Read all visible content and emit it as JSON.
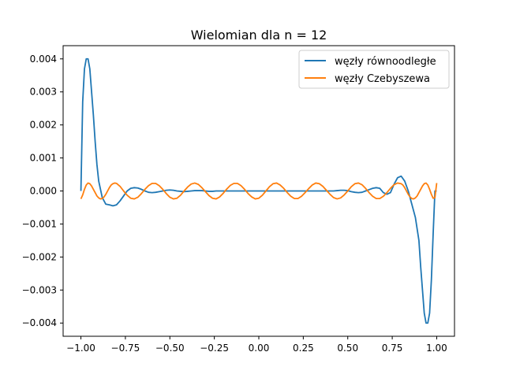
{
  "chart_data": {
    "type": "line",
    "title": "Wielomian dla n = 12",
    "xlabel": "",
    "ylabel": "",
    "xlim": [
      -1.1,
      1.1
    ],
    "ylim": [
      -0.0044,
      0.0044
    ],
    "xticks": [
      -1.0,
      -0.75,
      -0.5,
      -0.25,
      0.0,
      0.25,
      0.5,
      0.75,
      1.0
    ],
    "xtick_labels": [
      "−1.00",
      "−0.75",
      "−0.50",
      "−0.25",
      "0.00",
      "0.25",
      "0.50",
      "0.75",
      "1.00"
    ],
    "yticks": [
      -0.004,
      -0.003,
      -0.002,
      -0.001,
      0.0,
      0.001,
      0.002,
      0.003,
      0.004
    ],
    "ytick_labels": [
      "−0.004",
      "−0.003",
      "−0.002",
      "−0.001",
      "0.000",
      "0.001",
      "0.002",
      "0.003",
      "0.004"
    ],
    "grid": false,
    "legend_position": "top-right",
    "series": [
      {
        "name": "węzły równoodległe",
        "color": "#1f77b4",
        "x": [
          -1.0,
          -0.99,
          -0.98,
          -0.97,
          -0.96,
          -0.95,
          -0.94,
          -0.93,
          -0.92,
          -0.91,
          -0.9,
          -0.88,
          -0.86,
          -0.84,
          -0.82,
          -0.8,
          -0.78,
          -0.76,
          -0.74,
          -0.72,
          -0.7,
          -0.68,
          -0.66,
          -0.64,
          -0.62,
          -0.6,
          -0.58,
          -0.56,
          -0.54,
          -0.52,
          -0.5,
          -0.48,
          -0.46,
          -0.44,
          -0.42,
          -0.4,
          -0.38,
          -0.36,
          -0.34,
          -0.32,
          -0.3,
          -0.28,
          -0.26,
          -0.24,
          -0.22,
          -0.2,
          -0.18,
          -0.16,
          -0.14,
          -0.12,
          -0.1,
          -0.08,
          -0.06,
          -0.04,
          -0.02,
          0.0,
          0.02,
          0.04,
          0.06,
          0.08,
          0.1,
          0.12,
          0.14,
          0.16,
          0.18,
          0.2,
          0.22,
          0.24,
          0.26,
          0.28,
          0.3,
          0.32,
          0.34,
          0.36,
          0.38,
          0.4,
          0.42,
          0.44,
          0.46,
          0.48,
          0.5,
          0.52,
          0.54,
          0.56,
          0.58,
          0.6,
          0.62,
          0.64,
          0.66,
          0.68,
          0.7,
          0.72,
          0.74,
          0.76,
          0.78,
          0.8,
          0.82,
          0.84,
          0.86,
          0.88,
          0.9,
          0.91,
          0.92,
          0.93,
          0.94,
          0.95,
          0.96,
          0.97,
          0.98,
          0.99,
          1.0
        ],
        "y": [
          0.0,
          0.0027,
          0.0037,
          0.004,
          0.004,
          0.0037,
          0.003,
          0.0023,
          0.0015,
          0.0008,
          0.0003,
          -0.0002,
          -0.0004,
          -0.00042,
          -0.00045,
          -0.00042,
          -0.0003,
          -0.00015,
          0.0,
          8e-05,
          0.0001,
          9e-05,
          5e-05,
          0.0,
          -4e-05,
          -5e-05,
          -4e-05,
          -2e-05,
          0.0,
          2e-05,
          3e-05,
          2e-05,
          0.0,
          -1e-05,
          -2e-05,
          -1e-05,
          0.0,
          1e-05,
          1e-05,
          1e-05,
          0.0,
          -1e-05,
          -1e-05,
          0.0,
          0.0,
          0.0,
          0.0,
          0.0,
          0.0,
          0.0,
          0.0,
          0.0,
          0.0,
          0.0,
          0.0,
          0.0,
          0.0,
          0.0,
          0.0,
          0.0,
          0.0,
          0.0,
          0.0,
          0.0,
          0.0,
          0.0,
          0.0,
          0.0,
          0.0,
          0.0,
          0.0,
          0.0,
          0.0,
          0.0,
          0.0,
          0.0,
          0.0,
          1e-05,
          2e-05,
          2e-05,
          1e-05,
          -2e-05,
          -4e-05,
          -5e-05,
          -4e-05,
          0.0,
          4e-05,
          8e-05,
          0.0001,
          8e-05,
          -5e-05,
          -0.0001,
          -5e-05,
          0.0002,
          0.0004,
          0.00045,
          0.0003,
          0.0,
          -0.0004,
          -0.0008,
          -0.0015,
          -0.0023,
          -0.003,
          -0.0037,
          -0.004,
          -0.004,
          -0.0037,
          -0.0027,
          -0.0013,
          0.0,
          0.0
        ]
      },
      {
        "name": "węzły Czebyszewa",
        "color": "#ff7f0e",
        "x": [
          -1.0,
          -0.99,
          -0.98,
          -0.97,
          -0.96,
          -0.95,
          -0.94,
          -0.93,
          -0.92,
          -0.91,
          -0.9,
          -0.89,
          -0.88,
          -0.87,
          -0.86,
          -0.85,
          -0.84,
          -0.83,
          -0.82,
          -0.81,
          -0.8,
          -0.78,
          -0.76,
          -0.74,
          -0.72,
          -0.7,
          -0.68,
          -0.66,
          -0.64,
          -0.62,
          -0.6,
          -0.58,
          -0.56,
          -0.54,
          -0.52,
          -0.5,
          -0.48,
          -0.46,
          -0.44,
          -0.42,
          -0.4,
          -0.38,
          -0.36,
          -0.34,
          -0.32,
          -0.3,
          -0.28,
          -0.26,
          -0.24,
          -0.22,
          -0.2,
          -0.18,
          -0.16,
          -0.14,
          -0.12,
          -0.1,
          -0.08,
          -0.06,
          -0.04,
          -0.02,
          0.0,
          0.02,
          0.04,
          0.06,
          0.08,
          0.1,
          0.12,
          0.14,
          0.16,
          0.18,
          0.2,
          0.22,
          0.24,
          0.26,
          0.28,
          0.3,
          0.32,
          0.34,
          0.36,
          0.38,
          0.4,
          0.42,
          0.44,
          0.46,
          0.48,
          0.5,
          0.52,
          0.54,
          0.56,
          0.58,
          0.6,
          0.62,
          0.64,
          0.66,
          0.68,
          0.7,
          0.72,
          0.74,
          0.76,
          0.78,
          0.8,
          0.81,
          0.82,
          0.83,
          0.84,
          0.85,
          0.86,
          0.87,
          0.88,
          0.89,
          0.9,
          0.91,
          0.92,
          0.93,
          0.94,
          0.95,
          0.96,
          0.97,
          0.98,
          0.99,
          1.0
        ],
        "y": [
          -0.00024,
          -0.00012,
          5e-05,
          0.00018,
          0.00024,
          0.00022,
          0.00015,
          5e-05,
          -5e-05,
          -0.00015,
          -0.00021,
          -0.00024,
          -0.00023,
          -0.00018,
          -0.0001,
          0.0,
          0.0001,
          0.00018,
          0.00022,
          0.00024,
          0.00023,
          0.00014,
          0.0,
          -0.00013,
          -0.00022,
          -0.00024,
          -0.00019,
          -8e-05,
          5e-05,
          0.00016,
          0.00023,
          0.00023,
          0.00016,
          5e-05,
          -8e-05,
          -0.00019,
          -0.00024,
          -0.00022,
          -0.00013,
          0.0,
          0.00012,
          0.00021,
          0.00024,
          0.0002,
          0.0001,
          -2e-05,
          -0.00014,
          -0.00022,
          -0.00024,
          -0.00018,
          -7e-05,
          6e-05,
          0.00017,
          0.00023,
          0.00023,
          0.00016,
          5e-05,
          -8e-05,
          -0.00018,
          -0.00024,
          -0.00022,
          -0.00013,
          0.0,
          0.00013,
          0.00022,
          0.00024,
          0.00018,
          8e-05,
          -5e-05,
          -0.00016,
          -0.00023,
          -0.00023,
          -0.00016,
          -5e-05,
          7e-05,
          0.00018,
          0.00024,
          0.00022,
          0.00014,
          2e-05,
          -0.0001,
          -0.0002,
          -0.00024,
          -0.00021,
          -0.00012,
          0.0,
          0.00013,
          0.00022,
          0.00024,
          0.00019,
          8e-05,
          -5e-05,
          -0.00016,
          -0.00023,
          -0.00023,
          -0.00016,
          -5e-05,
          8e-05,
          0.00019,
          0.00024,
          0.00022,
          0.00018,
          0.0001,
          0.0,
          -0.0001,
          -0.00018,
          -0.00023,
          -0.00024,
          -0.00021,
          -0.00015,
          -5e-05,
          5e-05,
          0.00015,
          0.00022,
          0.00024,
          0.00018,
          5e-05,
          -0.0001,
          -0.00022,
          -0.0002,
          0.00024
        ]
      }
    ]
  }
}
